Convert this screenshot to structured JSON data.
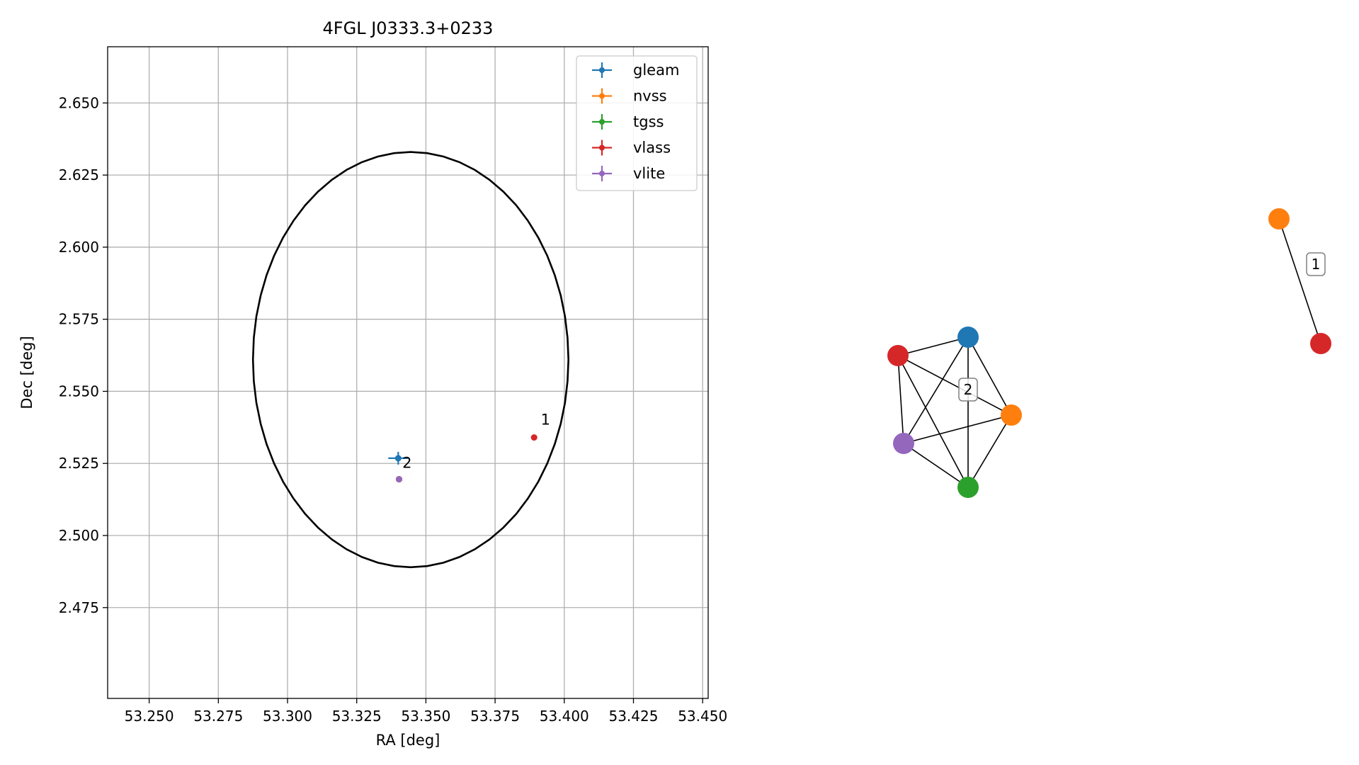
{
  "chart_data": [
    {
      "type": "scatter",
      "title": "4FGL J0333.3+0233",
      "xlabel": "RA [deg]",
      "ylabel": "Dec [deg]",
      "xlim": [
        53.235,
        53.452
      ],
      "ylim": [
        2.4435,
        2.6695
      ],
      "xticks": [
        53.25,
        53.275,
        53.3,
        53.325,
        53.35,
        53.375,
        53.4,
        53.425,
        53.45
      ],
      "xtick_labels": [
        "53.250",
        "53.275",
        "53.300",
        "53.325",
        "53.350",
        "53.375",
        "53.400",
        "53.425",
        "53.450"
      ],
      "yticks": [
        2.475,
        2.5,
        2.525,
        2.55,
        2.575,
        2.6,
        2.625,
        2.65
      ],
      "ytick_labels": [
        "2.475",
        "2.500",
        "2.525",
        "2.550",
        "2.575",
        "2.600",
        "2.625",
        "2.650"
      ],
      "grid": true,
      "legend_position": "top-right",
      "series": [
        {
          "name": "gleam",
          "color": "#1f77b4",
          "points": [
            {
              "x": 53.34,
              "y": 2.5268,
              "xerr": 0.0036,
              "yerr": 0.0022
            }
          ]
        },
        {
          "name": "nvss",
          "color": "#ff7f0e",
          "points": [
            {
              "x": 53.3403,
              "y": 2.5195,
              "xerr": 0.0004,
              "yerr": 0.0004
            }
          ]
        },
        {
          "name": "tgss",
          "color": "#2ca02c",
          "points": [
            {
              "x": 53.3403,
              "y": 2.5195,
              "xerr": 0.0003,
              "yerr": 0.0003
            }
          ]
        },
        {
          "name": "vlass",
          "color": "#d62728",
          "points": [
            {
              "x": 53.3891,
              "y": 2.534,
              "xerr": 0.0002,
              "yerr": 0.0002
            },
            {
              "x": 53.3403,
              "y": 2.5195,
              "xerr": 0.0002,
              "yerr": 0.0002
            }
          ]
        },
        {
          "name": "vlite",
          "color": "#9467bd",
          "points": [
            {
              "x": 53.3403,
              "y": 2.5195,
              "xerr": 0.0004,
              "yerr": 0.0004
            }
          ]
        }
      ],
      "ellipse": {
        "center_x": 53.3445,
        "center_y": 2.561,
        "semi_x": 0.057,
        "semi_y": 0.072
      },
      "annotations": [
        {
          "text": "1",
          "x": 53.3915,
          "y": 2.5385
        },
        {
          "text": "2",
          "x": 53.3415,
          "y": 2.5235
        }
      ]
    },
    {
      "type": "network",
      "groups": [
        {
          "label": "2",
          "nodes": [
            {
              "name": "gleam",
              "color": "#1f77b4"
            },
            {
              "name": "nvss",
              "color": "#ff7f0e"
            },
            {
              "name": "tgss",
              "color": "#2ca02c"
            },
            {
              "name": "vlass",
              "color": "#d62728"
            },
            {
              "name": "vlite",
              "color": "#9467bd"
            }
          ],
          "edges": [
            [
              "gleam",
              "vlass"
            ],
            [
              "gleam",
              "nvss"
            ],
            [
              "gleam",
              "tgss"
            ],
            [
              "gleam",
              "vlite"
            ],
            [
              "vlass",
              "nvss"
            ],
            [
              "vlass",
              "tgss"
            ],
            [
              "vlass",
              "vlite"
            ],
            [
              "nvss",
              "tgss"
            ],
            [
              "nvss",
              "vlite"
            ],
            [
              "tgss",
              "vlite"
            ]
          ]
        },
        {
          "label": "1",
          "nodes": [
            {
              "name": "nvss",
              "color": "#ff7f0e"
            },
            {
              "name": "vlass",
              "color": "#d62728"
            }
          ],
          "edges": [
            [
              "nvss",
              "vlass"
            ]
          ]
        }
      ]
    }
  ]
}
